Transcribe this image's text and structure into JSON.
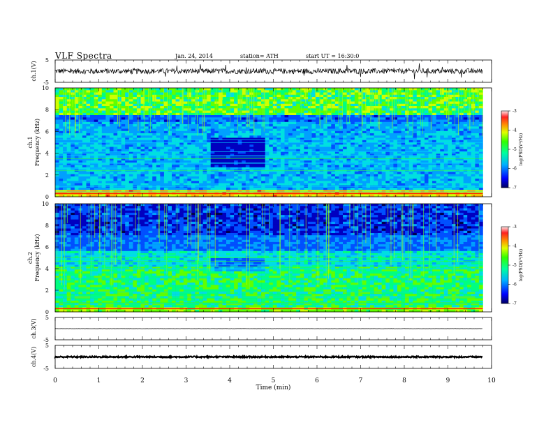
{
  "header": {
    "title": "VLF  Spectra",
    "date": "Jan. 24, 2014",
    "station": "station= ATH",
    "start": "start  UT  =   16:30:0"
  },
  "chart_data": {
    "type": "heatmap",
    "xlabel": "Time  (min)",
    "xlim": [
      0,
      10
    ],
    "xticks": [
      "0",
      "1",
      "2",
      "3",
      "4",
      "5",
      "6",
      "7",
      "8",
      "9",
      "10"
    ],
    "data_end_min": 9.8,
    "panels": [
      {
        "id": "ch1-waveform",
        "type": "line",
        "ylabel": "ch.1(V)",
        "ylim": [
          -5,
          5
        ],
        "yticks": [
          "5",
          "-5"
        ],
        "noise_amplitude": 1.2
      },
      {
        "id": "ch1-spectrogram",
        "type": "heatmap",
        "ylabel": "ch.1",
        "ylabel2": "Frequency  (kHz)",
        "ylim": [
          0,
          10
        ],
        "yticks": [
          "0",
          "2",
          "4",
          "6",
          "8",
          "10"
        ],
        "colorbar": {
          "label": "log(PSD(V²/Hz)",
          "range": [
            -7,
            -3
          ],
          "ticks": [
            "-3",
            "-4",
            "-5",
            "-6",
            "-7"
          ]
        }
      },
      {
        "id": "ch2-spectrogram",
        "type": "heatmap",
        "ylabel": "ch.2",
        "ylabel2": "Frequency  (kHz)",
        "ylim": [
          0,
          10
        ],
        "yticks": [
          "0",
          "2",
          "4",
          "6",
          "8",
          "10"
        ],
        "colorbar": {
          "label": "log(PSD(V²/Hz)",
          "range": [
            -7,
            -3
          ],
          "ticks": [
            "-3",
            "-4",
            "-5",
            "-6",
            "-7"
          ]
        }
      },
      {
        "id": "ch3-waveform",
        "type": "line",
        "ylabel": "ch.3(V)",
        "ylim": [
          -5,
          5
        ],
        "yticks": [
          "5",
          "-5"
        ],
        "noise_amplitude": 0.05
      },
      {
        "id": "ch4-waveform",
        "type": "line",
        "ylabel": "ch.4(V)",
        "ylim": [
          -5,
          5
        ],
        "yticks": [
          "5",
          "-5"
        ],
        "noise_amplitude": 0.3
      }
    ]
  }
}
